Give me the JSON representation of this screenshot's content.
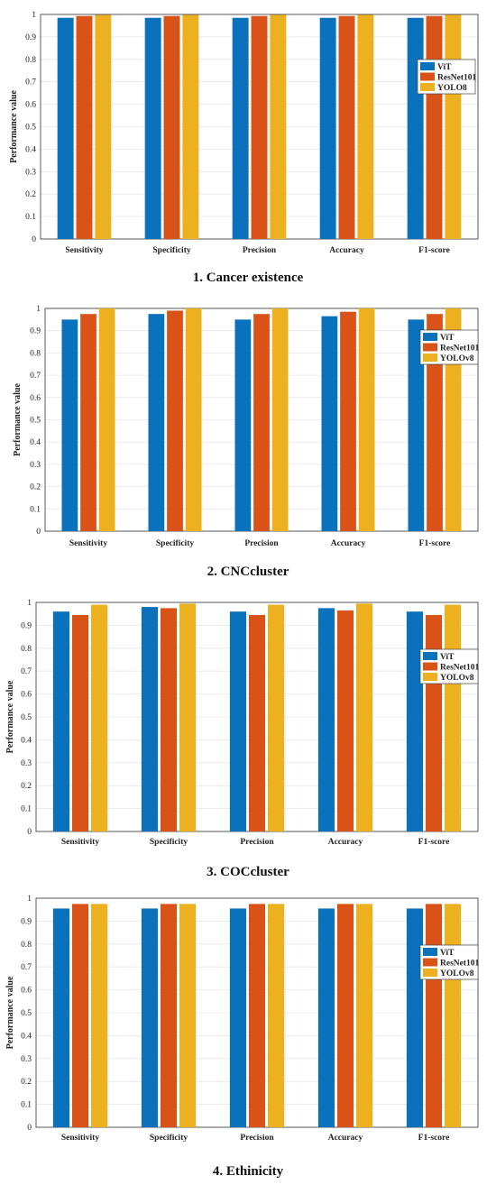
{
  "colors": {
    "ViT": "#0a72bd",
    "ResNet101": "#d95319",
    "YOLO": "#edb120"
  },
  "chart_data": [
    {
      "type": "bar",
      "title": "1. Cancer existence",
      "ylabel": "Performance value",
      "ylim": [
        0,
        1
      ],
      "yticks": [
        "0",
        "0.1",
        "0.2",
        "0.3",
        "0.4",
        "0.5",
        "0.6",
        "0.7",
        "0.8",
        "0.9",
        "1"
      ],
      "categories": [
        "Sensitivity",
        "Specificity",
        "Precision",
        "Accuracy",
        "F1-score"
      ],
      "legend_position": "right",
      "series": [
        {
          "name": "ViT",
          "values": [
            0.985,
            0.985,
            0.985,
            0.985,
            0.985
          ]
        },
        {
          "name": "ResNet101",
          "values": [
            0.993,
            0.993,
            0.993,
            0.993,
            0.993
          ]
        },
        {
          "name": "YOLO8",
          "values": [
            0.998,
            0.998,
            0.998,
            0.998,
            0.998
          ]
        }
      ]
    },
    {
      "type": "bar",
      "title": "2. CNCcluster",
      "ylabel": "Performance value",
      "ylim": [
        0,
        1
      ],
      "yticks": [
        "0",
        "0.1",
        "0.2",
        "0.3",
        "0.4",
        "0.5",
        "0.6",
        "0.7",
        "0.8",
        "0.9",
        "1"
      ],
      "categories": [
        "Sensitivity",
        "Specificity",
        "Precision",
        "Accuracy",
        "F1-score"
      ],
      "legend_position": "top-right",
      "series": [
        {
          "name": "ViT",
          "values": [
            0.95,
            0.975,
            0.95,
            0.965,
            0.95
          ]
        },
        {
          "name": "ResNet101",
          "values": [
            0.975,
            0.99,
            0.975,
            0.985,
            0.975
          ]
        },
        {
          "name": "YOLOv8",
          "values": [
            1.0,
            1.0,
            1.0,
            1.0,
            1.0
          ]
        }
      ]
    },
    {
      "type": "bar",
      "title": "3. COCcluster",
      "ylabel": "Performance value",
      "ylim": [
        0,
        1
      ],
      "yticks": [
        "0",
        "0.1",
        "0.2",
        "0.3",
        "0.4",
        "0.5",
        "0.6",
        "0.7",
        "0.8",
        "0.9",
        "1"
      ],
      "categories": [
        "Sensitivity",
        "Specificity",
        "Precision",
        "Accuracy",
        "F1-score"
      ],
      "legend_position": "right",
      "series": [
        {
          "name": "ViT",
          "values": [
            0.96,
            0.98,
            0.96,
            0.975,
            0.96
          ]
        },
        {
          "name": "ResNet101",
          "values": [
            0.945,
            0.975,
            0.945,
            0.965,
            0.945
          ]
        },
        {
          "name": "YOLOv8",
          "values": [
            0.99,
            0.995,
            0.99,
            0.995,
            0.99
          ]
        }
      ]
    },
    {
      "type": "bar",
      "title": "4. Ethinicity",
      "ylabel": "Performance value",
      "ylim": [
        0,
        1
      ],
      "yticks": [
        "0",
        "0.1",
        "0.2",
        "0.3",
        "0.4",
        "0.5",
        "0.6",
        "0.7",
        "0.8",
        "0.9",
        "1"
      ],
      "categories": [
        "Sensitivity",
        "Specificity",
        "Precision",
        "Accuracy",
        "F1-score"
      ],
      "legend_position": "right",
      "series": [
        {
          "name": "ViT",
          "values": [
            0.955,
            0.955,
            0.955,
            0.955,
            0.955
          ]
        },
        {
          "name": "ResNet101",
          "values": [
            0.975,
            0.975,
            0.975,
            0.975,
            0.975
          ]
        },
        {
          "name": "YOLOv8",
          "values": [
            0.975,
            0.975,
            0.975,
            0.975,
            0.975
          ]
        }
      ]
    }
  ]
}
